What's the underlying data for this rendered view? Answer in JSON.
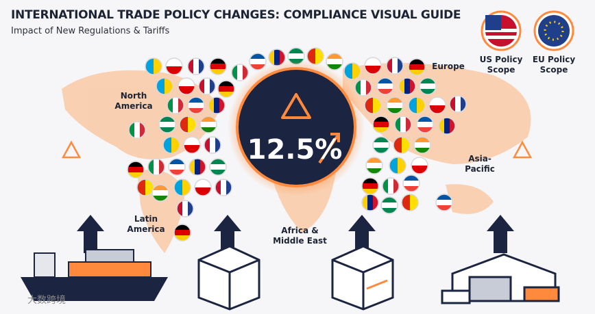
{
  "header": {
    "title": "INTERNATIONAL TRADE POLICY CHANGES: COMPLIANCE VISUAL GUIDE",
    "subtitle": "Impact of New Regulations & Tariffs"
  },
  "center": {
    "value": "12.5%"
  },
  "regions": [
    "North America",
    "Europe",
    "Asia-Pacific",
    "Latin America",
    "Africa & Middle East"
  ],
  "scopes": [
    "US Policy Scope",
    "EU Policy Scope"
  ],
  "watermark": "大数跨境"
}
